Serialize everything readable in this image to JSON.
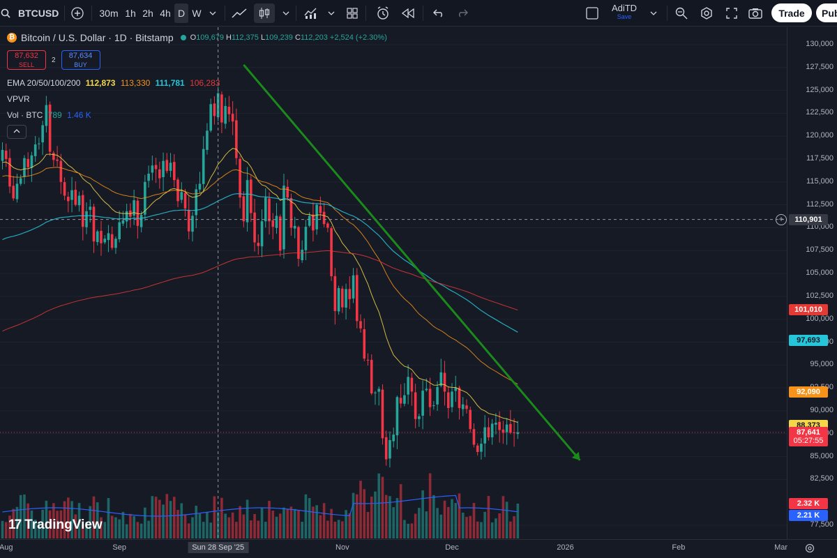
{
  "toolbar": {
    "symbol": "BTCUSD",
    "intervals": [
      "30m",
      "1h",
      "2h",
      "4h",
      "D",
      "W"
    ],
    "active_interval": "D",
    "layout_name": "AdiTD",
    "layout_save": "Save",
    "trade_label": "Trade",
    "publish_label": "Pub",
    "icons": [
      "search-icon",
      "add-symbol-icon",
      "chevron-down-icon",
      "line-chart-icon",
      "candles-icon",
      "indicators-icon",
      "templates-icon",
      "alert-icon",
      "replay-icon",
      "undo-icon",
      "redo-icon",
      "layout-icon",
      "quick-search-icon",
      "settings-icon",
      "fullscreen-icon",
      "camera-icon"
    ]
  },
  "legend": {
    "title": "Bitcoin / U.S. Dollar · 1D · Bitstamp",
    "open_key": "O",
    "open": "109,679",
    "high_key": "H",
    "high": "112,375",
    "low_key": "L",
    "low": "109,239",
    "close_key": "C",
    "close": "112,203",
    "change": "+2,524 (+2.30%)",
    "sell_price": "87,632",
    "sell_label": "SELL",
    "buy_price": "87,634",
    "buy_label": "BUY",
    "spread": "2",
    "ema_label": "EMA 20/50/100/200",
    "ema20": "112,873",
    "ema50": "113,330",
    "ema100": "111,781",
    "ema200": "106,283",
    "vpvr_label": "VPVR",
    "vol_label": "Vol · BTC",
    "vol_value1": "789",
    "vol_value2": "1.46 K"
  },
  "logo": {
    "text": "TradingView",
    "mark": "17"
  },
  "colors": {
    "up": "#26a69a",
    "down": "#f23645",
    "ema20": "#f7d74a",
    "ema50": "#f7931a",
    "ema100": "#26c6da",
    "ema200": "#e53935",
    "vol_ma": "#2962ff",
    "trendline": "#1a8a1a"
  },
  "price_axis": {
    "ticks": [
      "130,000",
      "127,500",
      "125,000",
      "122,500",
      "120,000",
      "117,500",
      "115,000",
      "112,500",
      "110,000",
      "107,500",
      "105,000",
      "102,500",
      "100,000",
      "97,500",
      "95,000",
      "92,500",
      "90,000",
      "87,500",
      "85,000",
      "82,500",
      "77,500"
    ],
    "crosshair_price": "110,901",
    "tags": {
      "ema200": "101,010",
      "ema100": "97,693",
      "ema50": "92,090",
      "ema20": "88,373",
      "last_price": "87,641",
      "countdown": "05:27:55",
      "vol": "2.32 K",
      "vol_ma": "2.21 K"
    }
  },
  "time_axis": {
    "labels": [
      "Aug",
      "Sep",
      "Sun 28 Sep '25",
      "Nov",
      "Dec",
      "2026",
      "Feb",
      "Mar"
    ]
  },
  "chart_data": {
    "type": "candlestick",
    "title": "Bitcoin / U.S. Dollar · 1D · Bitstamp",
    "x_start": "2025-07-31",
    "y_range": [
      76000,
      131500
    ],
    "crosshair": {
      "date": "2025-09-28",
      "price": 110901
    },
    "last_price": 87641,
    "price_line_key_levels": [
      125000,
      110901,
      87641
    ],
    "ema": {
      "ema20": 88373,
      "ema50": 92090,
      "ema100": 97693,
      "ema200": 101010
    },
    "volume_last": "2.32 K",
    "volume_ma": "2.21 K",
    "trendline": {
      "from": {
        "date": "2025-10-05",
        "price": 127800
      },
      "to": {
        "date": "2026-01-05",
        "price": 84600
      },
      "color": "green",
      "arrow": true
    },
    "closes": [
      118500,
      117500,
      114500,
      113200,
      114800,
      115400,
      117600,
      116600,
      117900,
      119100,
      119200,
      121200,
      123400,
      118300,
      117400,
      117300,
      115000,
      113500,
      112900,
      114100,
      112500,
      113500,
      110100,
      111800,
      112300,
      108500,
      109600,
      108300,
      108800,
      109400,
      107800,
      108800,
      110600,
      110800,
      111800,
      111200,
      113000,
      110200,
      111400,
      115000,
      115900,
      116800,
      116400,
      115400,
      117300,
      116200,
      117100,
      115200,
      112900,
      113900,
      112100,
      109600,
      111300,
      114200,
      114800,
      118600,
      120600,
      123500,
      122200,
      124700,
      121500,
      123300,
      122400,
      121600,
      117600,
      113300,
      110700,
      115200,
      111600,
      108400,
      108000,
      110700,
      113300,
      110700,
      110100,
      111300,
      107500,
      114600,
      113300,
      110000,
      110200,
      106600,
      107600,
      110100,
      111300,
      109700,
      112500,
      111600,
      110400,
      110000,
      104700,
      100900,
      103400,
      101300,
      103300,
      102200,
      104800,
      99800,
      99000,
      95700,
      95500,
      91900,
      92000,
      92400,
      87000,
      84700,
      86800,
      87400,
      91500,
      90800,
      91700,
      93700,
      92100,
      89100,
      89400,
      92200,
      92400,
      90400,
      90600,
      92600,
      94200,
      92100,
      90300,
      92100,
      92500,
      90300,
      90700,
      90200,
      88000,
      86300,
      85500,
      86400,
      88200,
      87100,
      88600,
      88700,
      87900,
      87600,
      88500,
      87600,
      87600,
      87641
    ]
  }
}
